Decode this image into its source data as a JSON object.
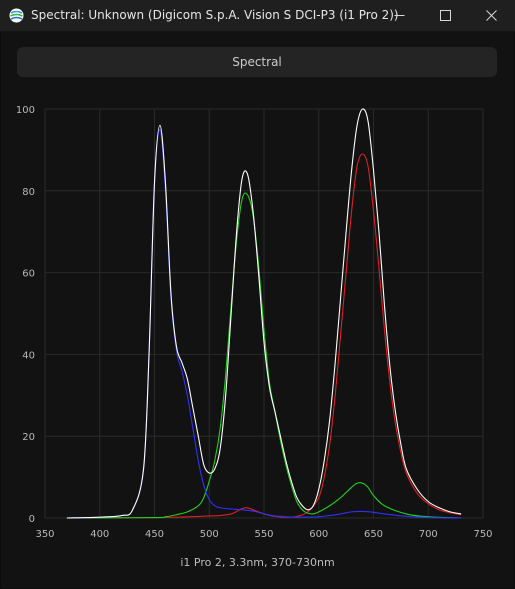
{
  "window": {
    "title": "Spectral: Unknown (Digicom S.p.A. Vision S DCI-P3 (i1 Pro 2))",
    "icons": {
      "app": "colorimeter-app-icon",
      "minimize": "minimize-icon",
      "maximize": "maximize-icon",
      "close": "close-icon"
    }
  },
  "toolbar": {
    "mode_label": "Spectral"
  },
  "footer": {
    "caption": "i1 Pro 2, 3.3nm, 370-730nm"
  },
  "colors": {
    "background": "#121212",
    "grid": "#2a2a2a",
    "white": "#ffffff",
    "red": "#e02020",
    "green": "#20d020",
    "blue": "#3030ff"
  },
  "chart_data": {
    "type": "line",
    "title": "",
    "xlabel": "",
    "ylabel": "",
    "xlim": [
      350,
      750
    ],
    "ylim": [
      0,
      100
    ],
    "xticks": [
      350,
      400,
      450,
      500,
      550,
      600,
      650,
      700,
      750
    ],
    "yticks": [
      0,
      20,
      40,
      60,
      80,
      100
    ],
    "grid": true,
    "legend": "none",
    "series": [
      {
        "color": "#ffffff",
        "x": [
          370,
          400,
          420,
          430,
          440,
          445,
          450,
          455,
          460,
          465,
          470,
          475,
          480,
          485,
          490,
          495,
          500,
          505,
          510,
          515,
          520,
          525,
          530,
          535,
          540,
          545,
          550,
          555,
          560,
          565,
          570,
          575,
          580,
          585,
          590,
          595,
          600,
          605,
          610,
          615,
          620,
          625,
          630,
          635,
          640,
          645,
          650,
          655,
          660,
          665,
          670,
          675,
          680,
          690,
          700,
          710,
          720,
          730
        ],
        "y": [
          0,
          0.2,
          0.6,
          2,
          12,
          40,
          82,
          96,
          82,
          55,
          42,
          38,
          34,
          27,
          20,
          13,
          11,
          12,
          17,
          30,
          50,
          70,
          83,
          84,
          75,
          60,
          43,
          32,
          26,
          20,
          14,
          9,
          5,
          3,
          2,
          3,
          7,
          14,
          24,
          38,
          54,
          70,
          85,
          96,
          100,
          97,
          85,
          70,
          52,
          37,
          26,
          18,
          12,
          7,
          4,
          2.5,
          1.5,
          1
        ]
      },
      {
        "color": "#e02020",
        "x": [
          370,
          450,
          480,
          500,
          510,
          520,
          525,
          530,
          535,
          540,
          545,
          550,
          560,
          570,
          580,
          590,
          600,
          605,
          610,
          615,
          620,
          625,
          630,
          635,
          640,
          645,
          650,
          655,
          660,
          665,
          670,
          675,
          680,
          690,
          700,
          710,
          720,
          730
        ],
        "y": [
          0,
          0.1,
          0.3,
          0.5,
          0.6,
          1,
          1.6,
          2.3,
          2.5,
          2,
          1.5,
          1,
          0.4,
          0.2,
          0.4,
          1.5,
          5,
          10,
          18,
          30,
          45,
          60,
          75,
          86,
          89,
          86,
          75,
          61,
          46,
          33,
          23,
          16,
          11,
          6,
          3.5,
          2,
          1.3,
          0.8
        ]
      },
      {
        "color": "#20d020",
        "x": [
          370,
          450,
          460,
          470,
          480,
          490,
          495,
          500,
          505,
          510,
          515,
          520,
          525,
          530,
          535,
          540,
          545,
          550,
          555,
          560,
          565,
          570,
          575,
          580,
          585,
          590,
          595,
          600,
          610,
          620,
          630,
          635,
          640,
          645,
          650,
          660,
          680,
          700,
          730
        ],
        "y": [
          0,
          0.1,
          0.3,
          0.8,
          1.5,
          3,
          5,
          9,
          14,
          22,
          35,
          52,
          68,
          78,
          79,
          74,
          62,
          46,
          33,
          26,
          19,
          13,
          8,
          4,
          2,
          1.2,
          1,
          1.5,
          3,
          5,
          7.5,
          8.5,
          8.5,
          7.5,
          5.5,
          3,
          1,
          0.3,
          0
        ]
      },
      {
        "color": "#3030ff",
        "x": [
          370,
          400,
          420,
          430,
          440,
          445,
          450,
          455,
          460,
          465,
          470,
          475,
          480,
          485,
          490,
          495,
          500,
          505,
          510,
          520,
          530,
          540,
          550,
          560,
          570,
          580,
          590,
          600,
          610,
          620,
          630,
          640,
          650,
          660,
          680,
          700,
          730
        ],
        "y": [
          0,
          0.2,
          0.6,
          2,
          12,
          40,
          82,
          95,
          80,
          54,
          41,
          36,
          30,
          22,
          14,
          8,
          4.5,
          3,
          2.5,
          2.2,
          2,
          1.7,
          1,
          0.5,
          0.3,
          0.2,
          0.2,
          0.3,
          0.6,
          1,
          1.5,
          1.6,
          1.4,
          1,
          0.4,
          0.1,
          0
        ]
      }
    ]
  }
}
